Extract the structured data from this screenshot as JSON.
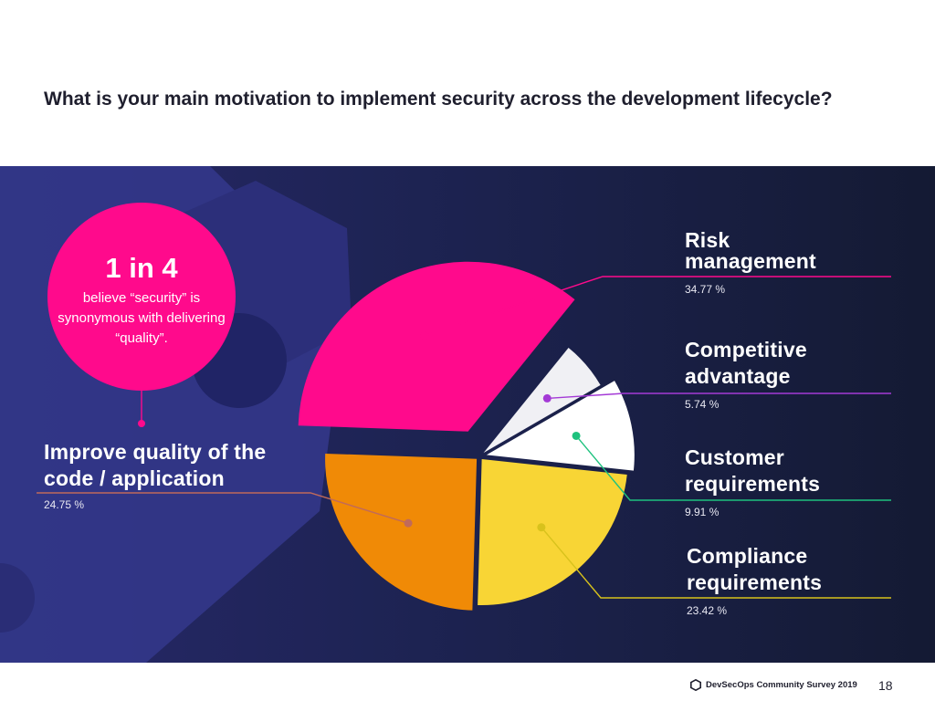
{
  "title": "What is your main motivation to implement security across the development lifecycle?",
  "callout": {
    "headline": "1 in 4",
    "text": "believe “security” is synonymous with delivering “quality”."
  },
  "chart_data": {
    "type": "pie",
    "title": "What is your main motivation to implement security across the development lifecycle?",
    "unit": "%",
    "slices": [
      {
        "label": "Risk management",
        "value": 34.77,
        "display": "34.77 %",
        "color": "#ff0a8c"
      },
      {
        "label": "Competitive advantage",
        "value": 5.74,
        "display": "5.74 %",
        "color": "#f0f0f4"
      },
      {
        "label": "Customer requirements",
        "value": 9.91,
        "display": "9.91 %",
        "color": "#ffffff"
      },
      {
        "label": "Compliance requirements",
        "value": 23.42,
        "display": "23.42 %",
        "color": "#f8d535"
      },
      {
        "label": "Improve quality of the code / application",
        "value": 24.75,
        "display": "24.75 %",
        "color": "#f08a06"
      }
    ],
    "leader_colors": [
      "#ff0a8c",
      "#a43ad6",
      "#1ec27e",
      "#d8c21c",
      "#c06a5a"
    ]
  },
  "labels": {
    "risk": {
      "line1": "Risk",
      "line2": "management",
      "pct": "34.77 %"
    },
    "competitive": {
      "line1": "Competitive",
      "line2": "advantage",
      "pct": "5.74 %"
    },
    "customer": {
      "line1": "Customer",
      "line2": "requirements",
      "pct": "9.91 %"
    },
    "compliance": {
      "line1": "Compliance",
      "line2": "requirements",
      "pct": "23.42 %"
    },
    "quality": {
      "line1": "Improve quality of the",
      "line2": "code / application",
      "pct": "24.75 %"
    }
  },
  "footer": {
    "survey": "DevSecOps Community Survey 2019",
    "page": "18"
  }
}
